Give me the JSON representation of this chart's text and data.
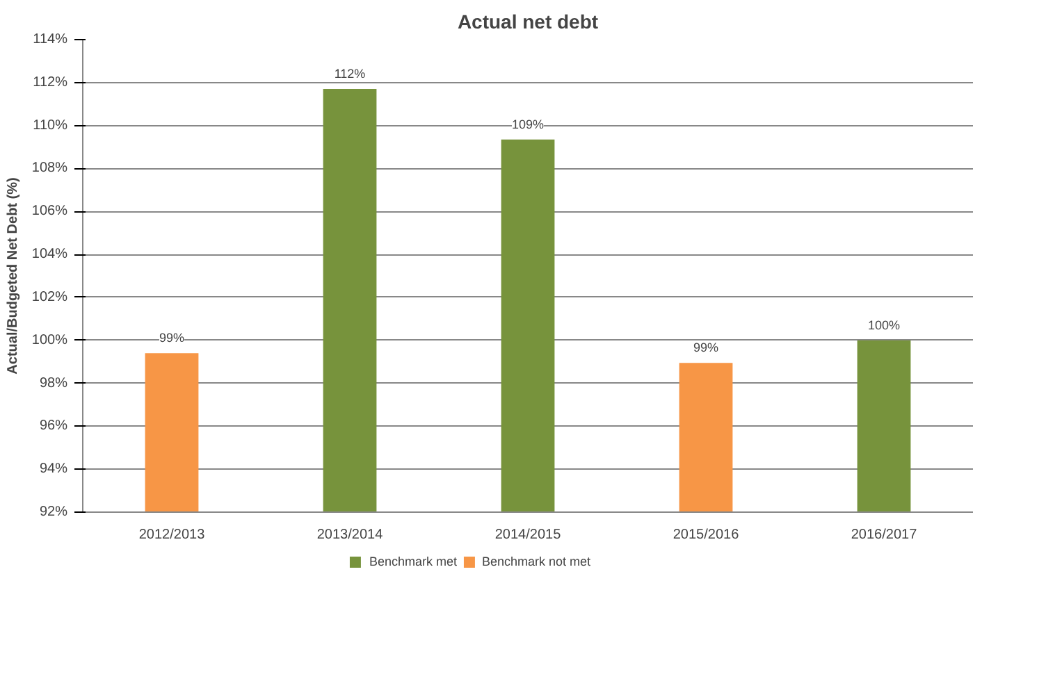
{
  "chart_data": {
    "type": "bar",
    "title": "Actual net debt",
    "ylabel": "Actual/Budgeted Net Debt (%)",
    "categories": [
      "2012/2013",
      "2013/2014",
      "2014/2015",
      "2015/2016",
      "2016/2017"
    ],
    "series": [
      {
        "name": "Benchmark met",
        "color": "#77933c",
        "values": [
          null,
          111.7,
          109.35,
          null,
          100.0
        ],
        "value_labels": [
          null,
          "112%",
          "109%",
          null,
          "100%"
        ]
      },
      {
        "name": "Benchmark not met",
        "color": "#f79646",
        "values": [
          99.4,
          null,
          null,
          98.95,
          null
        ],
        "value_labels": [
          "99%",
          null,
          null,
          "99%",
          null
        ]
      }
    ],
    "ylim": [
      92,
      114
    ],
    "yticks": [
      {
        "value": 92,
        "label": "92%"
      },
      {
        "value": 94,
        "label": "94%"
      },
      {
        "value": 96,
        "label": "96%"
      },
      {
        "value": 98,
        "label": "98%"
      },
      {
        "value": 100,
        "label": "100%"
      },
      {
        "value": 102,
        "label": "102%"
      },
      {
        "value": 104,
        "label": "104%"
      },
      {
        "value": 106,
        "label": "106%"
      },
      {
        "value": 108,
        "label": "108%"
      },
      {
        "value": 110,
        "label": "110%"
      },
      {
        "value": 112,
        "label": "112%"
      },
      {
        "value": 114,
        "label": "114%"
      }
    ],
    "grid": "y",
    "legend": "bottom"
  }
}
